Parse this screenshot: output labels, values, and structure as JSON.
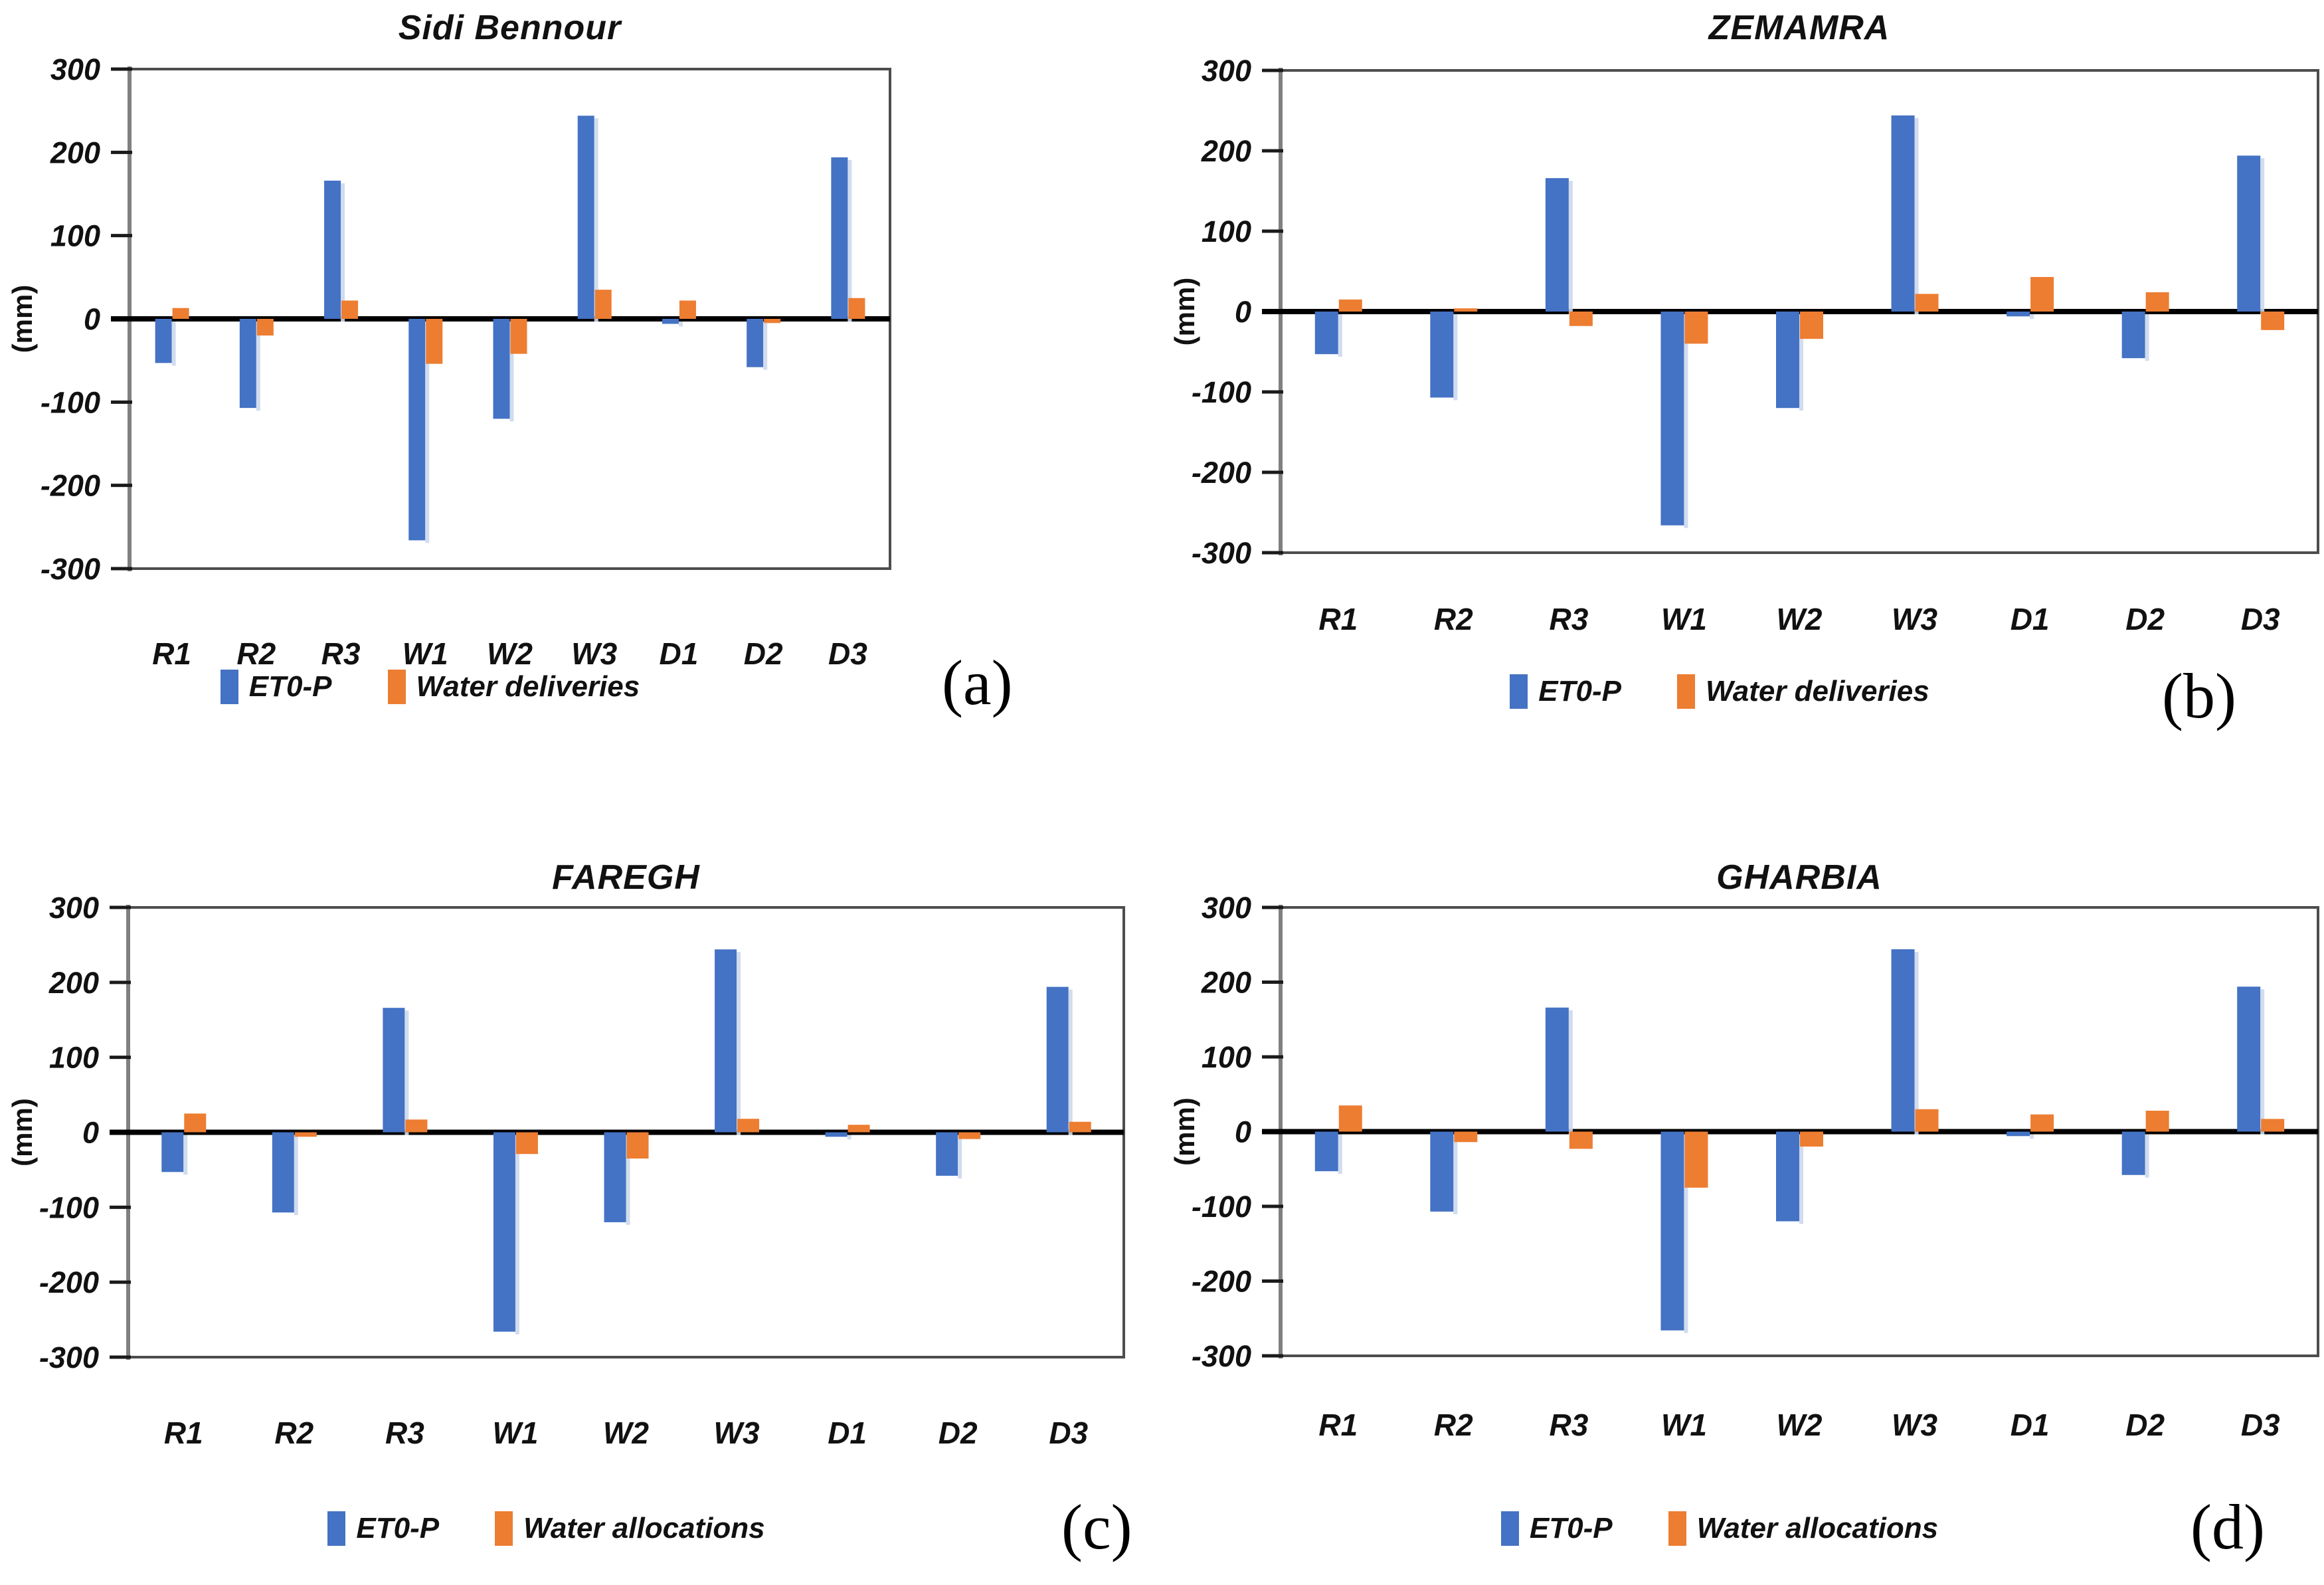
{
  "figure": {
    "background": "#ffffff",
    "description": "Four bar-chart panels comparing ET0-P with water deliveries/allocations under climate scenarios",
    "panel_letters": [
      "(a)",
      "(b)",
      "(c)",
      "(d)"
    ]
  },
  "styles": {
    "blue": "#4472C4",
    "blue_shadow": "#CCD8EC",
    "orange": "#ED7D31",
    "frame_color": "#4d4d4d",
    "axis_color": "#808080",
    "tick_color": "#1a1a1a",
    "zero_line_color": "#000000"
  },
  "chart_data": [
    {
      "type": "bar",
      "panel_letter": "(a)",
      "title": "Sidi Bennour",
      "ylabel": "(mm)",
      "xlabel": "",
      "ylim": [
        -300,
        300
      ],
      "ytick_step": 100,
      "yticks": [
        "300",
        "200",
        "100",
        "0",
        "-100",
        "-200",
        "-300"
      ],
      "grid": false,
      "legend_position": "bottom",
      "categories": [
        "R1",
        "R2",
        "R3",
        "W1",
        "W2",
        "W3",
        "D1",
        "D2",
        "D3"
      ],
      "series": [
        {
          "name": "ET0-P",
          "color": "#4472C4",
          "values": [
            -53,
            -107,
            166,
            -266,
            -120,
            244,
            -6,
            -58,
            194
          ]
        },
        {
          "name": "Water deliveries",
          "color": "#ED7D31",
          "values": [
            13,
            -20,
            22,
            -54,
            -42,
            35,
            22,
            -5,
            25
          ]
        }
      ]
    },
    {
      "type": "bar",
      "panel_letter": "(b)",
      "title": "ZEMAMRA",
      "ylabel": "(mm)",
      "xlabel": "",
      "ylim": [
        -300,
        300
      ],
      "ytick_step": 100,
      "yticks": [
        "300",
        "200",
        "100",
        "0",
        "-100",
        "-200",
        "-300"
      ],
      "grid": false,
      "legend_position": "bottom",
      "categories": [
        "R1",
        "R2",
        "R3",
        "W1",
        "W2",
        "W3",
        "D1",
        "D2",
        "D3"
      ],
      "series": [
        {
          "name": "ET0-P",
          "color": "#4472C4",
          "values": [
            -53,
            -107,
            166,
            -266,
            -120,
            244,
            -6,
            -58,
            194
          ]
        },
        {
          "name": "Water deliveries",
          "color": "#ED7D31",
          "values": [
            15,
            4,
            -18,
            -40,
            -34,
            22,
            43,
            24,
            -23
          ]
        }
      ]
    },
    {
      "type": "bar",
      "panel_letter": "(c)",
      "title": "FAREGH",
      "ylabel": "(mm)",
      "xlabel": "",
      "ylim": [
        -300,
        300
      ],
      "ytick_step": 100,
      "yticks": [
        "300",
        "200",
        "100",
        "0",
        "-100",
        "-200",
        "-300"
      ],
      "grid": false,
      "legend_position": "bottom",
      "categories": [
        "R1",
        "R2",
        "R3",
        "W1",
        "W2",
        "W3",
        "D1",
        "D2",
        "D3"
      ],
      "series": [
        {
          "name": "ET0-P",
          "color": "#4472C4",
          "values": [
            -53,
            -107,
            166,
            -266,
            -120,
            244,
            -6,
            -58,
            194
          ]
        },
        {
          "name": "Water allocations",
          "color": "#ED7D31",
          "values": [
            25,
            -6,
            17,
            -29,
            -35,
            18,
            10,
            -9,
            14
          ]
        }
      ]
    },
    {
      "type": "bar",
      "panel_letter": "(d)",
      "title": "GHARBIA",
      "ylabel": "(mm)",
      "xlabel": "",
      "ylim": [
        -300,
        300
      ],
      "ytick_step": 100,
      "yticks": [
        "300",
        "200",
        "100",
        "0",
        "-100",
        "-200",
        "-300"
      ],
      "grid": false,
      "legend_position": "bottom",
      "categories": [
        "R1",
        "R2",
        "R3",
        "W1",
        "W2",
        "W3",
        "D1",
        "D2",
        "D3"
      ],
      "series": [
        {
          "name": "ET0-P",
          "color": "#4472C4",
          "values": [
            -53,
            -107,
            166,
            -266,
            -120,
            244,
            -6,
            -58,
            194
          ]
        },
        {
          "name": "Water allocations",
          "color": "#ED7D31",
          "values": [
            35,
            -14,
            -23,
            -75,
            -20,
            30,
            23,
            28,
            17
          ]
        }
      ]
    }
  ]
}
